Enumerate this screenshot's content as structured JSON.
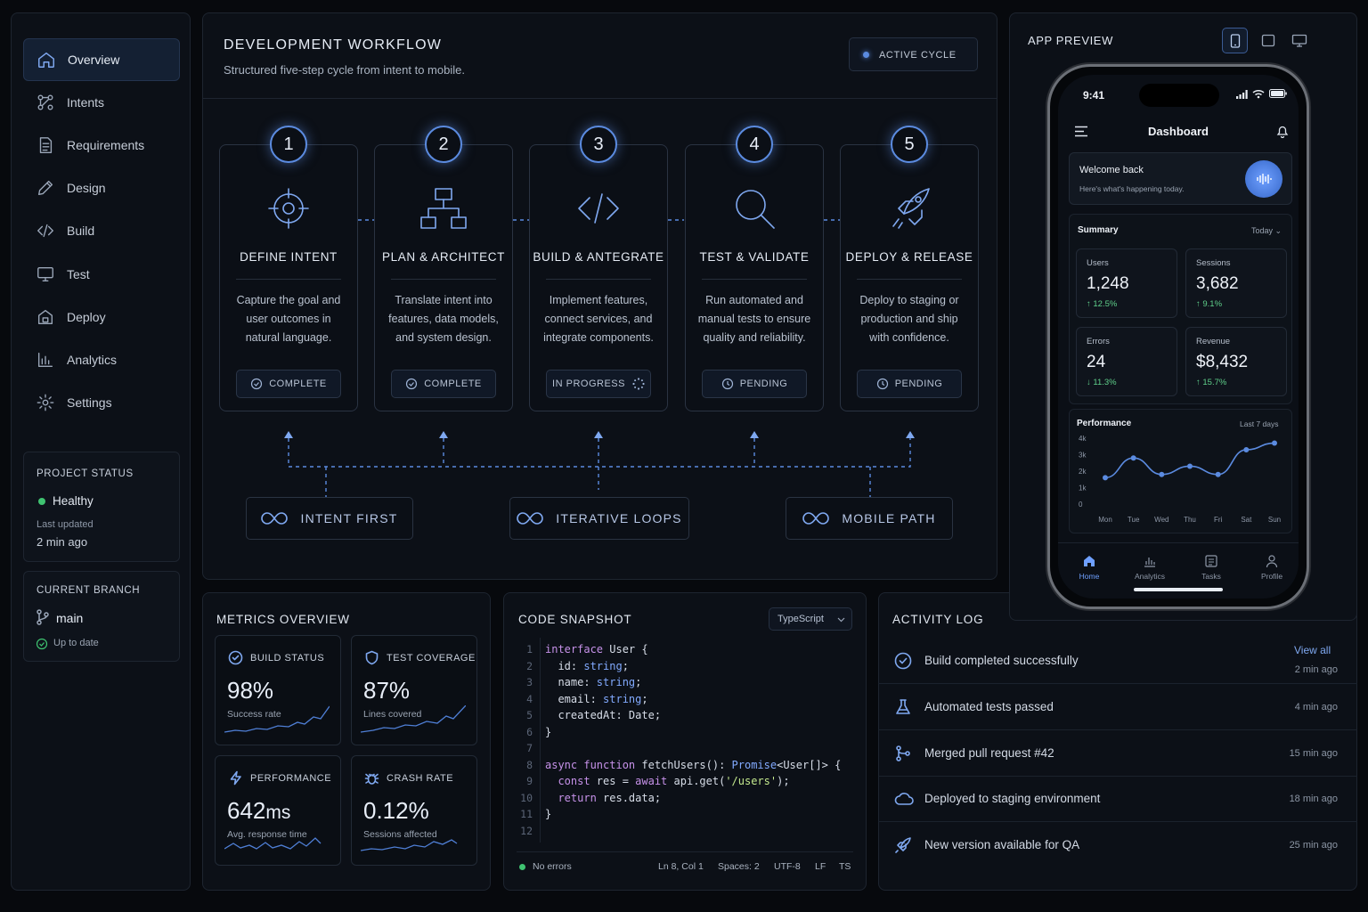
{
  "sidebar": {
    "items": [
      {
        "label": "Overview",
        "icon": "home-icon"
      },
      {
        "label": "Intents",
        "icon": "nodes-icon"
      },
      {
        "label": "Requirements",
        "icon": "document-icon"
      },
      {
        "label": "Design",
        "icon": "pencil-icon"
      },
      {
        "label": "Build",
        "icon": "code-icon"
      },
      {
        "label": "Test",
        "icon": "monitor-icon"
      },
      {
        "label": "Deploy",
        "icon": "package-icon"
      },
      {
        "label": "Analytics",
        "icon": "bar-chart-icon"
      },
      {
        "label": "Settings",
        "icon": "gear-icon"
      }
    ],
    "project_status": {
      "title": "PROJECT STATUS",
      "status": "Healthy",
      "updated_label": "Last updated",
      "updated_value": "2 min ago"
    },
    "branch": {
      "title": "CURRENT BRANCH",
      "name": "main",
      "state": "Up to date"
    }
  },
  "workflow": {
    "title": "DEVELOPMENT WORKFLOW",
    "subtitle": "Structured five-step cycle from intent to mobile.",
    "badge": "ACTIVE CYCLE",
    "steps": [
      {
        "num": "1",
        "title": "DEFINE INTENT",
        "desc": "Capture the goal and user outcomes in natural language.",
        "status": "COMPLETE",
        "icon": "crosshair-icon"
      },
      {
        "num": "2",
        "title": "PLAN & ARCHITECT",
        "desc": "Translate intent into features, data models, and system design.",
        "status": "COMPLETE",
        "icon": "hierarchy-icon"
      },
      {
        "num": "3",
        "title": "BUILD & ANTEGRATE",
        "desc": "Implement features, connect services, and integrate components.",
        "status": "IN PROGRESS",
        "icon": "code-icon"
      },
      {
        "num": "4",
        "title": "TEST & VALIDATE",
        "desc": "Run automated and manual tests to ensure quality and reliability.",
        "status": "PENDING",
        "icon": "magnifier-icon"
      },
      {
        "num": "5",
        "title": "DEPLOY & RELEASE",
        "desc": "Deploy to staging or production and ship with confidence.",
        "status": "PENDING",
        "icon": "rocket-icon"
      }
    ],
    "pillars": [
      "INTENT FIRST",
      "ITERATIVE LOOPS",
      "MOBILE PATH"
    ]
  },
  "metrics": {
    "title": "METRICS OVERVIEW",
    "cards": [
      {
        "label": "BUILD STATUS",
        "value": "98%",
        "sub": "Success rate",
        "icon": "check-circle-icon"
      },
      {
        "label": "TEST COVERAGE",
        "value": "87%",
        "sub": "Lines covered",
        "icon": "shield-icon"
      },
      {
        "label": "PERFORMANCE",
        "value": "642",
        "unit": "ms",
        "sub": "Avg. response time",
        "icon": "lightning-icon"
      },
      {
        "label": "CRASH RATE",
        "value": "0.12%",
        "sub": "Sessions affected",
        "icon": "bug-icon"
      }
    ]
  },
  "code": {
    "title": "CODE SNAPSHOT",
    "language": "TypeScript",
    "line_numbers": [
      "1",
      "2",
      "3",
      "4",
      "5",
      "6",
      "7",
      "8",
      "9",
      "10",
      "11",
      "12"
    ],
    "status": {
      "errors": "No errors",
      "position": "Ln 8, Col 1",
      "spaces": "Spaces: 2",
      "encoding": "UTF-8",
      "eol": "LF",
      "lang": "TS"
    }
  },
  "activity": {
    "title": "ACTIVITY LOG",
    "view_all": "View all",
    "items": [
      {
        "text": "Build completed successfully",
        "time": "2 min ago",
        "icon": "check-circle-icon"
      },
      {
        "text": "Automated tests passed",
        "time": "4 min ago",
        "icon": "flask-icon"
      },
      {
        "text": "Merged pull request #42",
        "time": "15 min ago",
        "icon": "git-merge-icon"
      },
      {
        "text": "Deployed to staging environment",
        "time": "18 min ago",
        "icon": "cloud-icon"
      },
      {
        "text": "New version available for QA",
        "time": "25 min ago",
        "icon": "rocket-icon"
      }
    ]
  },
  "preview": {
    "title": "APP PREVIEW",
    "devices": [
      "phone-icon",
      "tablet-icon",
      "desktop-icon"
    ],
    "phone": {
      "time": "9:41",
      "header": "Dashboard",
      "welcome": {
        "title": "Welcome back",
        "sub": "Here's what's happening today."
      },
      "summary": {
        "title": "Summary",
        "range": "Today"
      },
      "stats": [
        {
          "label": "Users",
          "value": "1,248",
          "delta": "↑ 12.5%"
        },
        {
          "label": "Sessions",
          "value": "3,682",
          "delta": "↑ 9.1%"
        },
        {
          "label": "Errors",
          "value": "24",
          "delta": "↓ 11.3%"
        },
        {
          "label": "Revenue",
          "value": "$8,432",
          "delta": "↑ 15.7%"
        }
      ],
      "performance": {
        "title": "Performance",
        "range": "Last 7 days"
      },
      "tabs": [
        "Home",
        "Analytics",
        "Tasks",
        "Profile"
      ]
    }
  },
  "chart_data": {
    "type": "line",
    "title": "Performance",
    "x": [
      "Mon",
      "Tue",
      "Wed",
      "Thu",
      "Fri",
      "Sat",
      "Sun"
    ],
    "y_ticks": [
      "4k",
      "3k",
      "2k",
      "1k",
      "0"
    ],
    "series": [
      {
        "values": [
          1600,
          2800,
          1800,
          2300,
          1800,
          3300,
          3700
        ]
      }
    ],
    "ylim": [
      0,
      4000
    ],
    "grid": false,
    "color": "#5b8be0"
  },
  "colors": {
    "accent": "#5b8be0",
    "success": "#3fc371",
    "bg": "#07090d"
  }
}
